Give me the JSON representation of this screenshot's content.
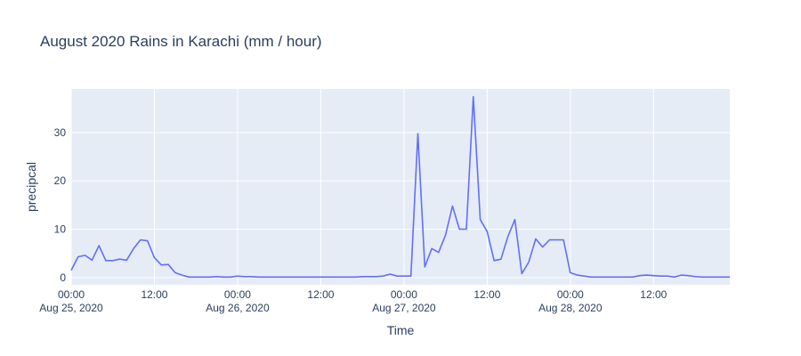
{
  "chart_data": {
    "type": "line",
    "title": "August 2020 Rains in Karachi (mm / hour)",
    "xlabel": "Time",
    "ylabel": "precipcal",
    "xlim": [
      "2020-08-25 00:00",
      "2020-08-28 23:00"
    ],
    "ylim": [
      -1.5,
      39
    ],
    "y_ticks": [
      0,
      10,
      20,
      30
    ],
    "x_ticks": [
      {
        "at": "2020-08-25 00:00",
        "label": "00:00",
        "sublabel": "Aug 25, 2020"
      },
      {
        "at": "2020-08-25 12:00",
        "label": "12:00",
        "sublabel": ""
      },
      {
        "at": "2020-08-26 00:00",
        "label": "00:00",
        "sublabel": "Aug 26, 2020"
      },
      {
        "at": "2020-08-26 12:00",
        "label": "12:00",
        "sublabel": ""
      },
      {
        "at": "2020-08-27 00:00",
        "label": "00:00",
        "sublabel": "Aug 27, 2020"
      },
      {
        "at": "2020-08-27 12:00",
        "label": "12:00",
        "sublabel": ""
      },
      {
        "at": "2020-08-28 00:00",
        "label": "00:00",
        "sublabel": "Aug 28, 2020"
      },
      {
        "at": "2020-08-28 12:00",
        "label": "12:00",
        "sublabel": ""
      }
    ],
    "grid": true,
    "line_color": "#636efa",
    "plot_background": "#e5ecf6",
    "series": [
      {
        "x": [
          "2020-08-25 00:00",
          "2020-08-25 01:00",
          "2020-08-25 02:00",
          "2020-08-25 03:00",
          "2020-08-25 04:00",
          "2020-08-25 05:00",
          "2020-08-25 06:00",
          "2020-08-25 07:00",
          "2020-08-25 08:00",
          "2020-08-25 09:00",
          "2020-08-25 10:00",
          "2020-08-25 11:00",
          "2020-08-25 12:00",
          "2020-08-25 13:00",
          "2020-08-25 14:00",
          "2020-08-25 15:00",
          "2020-08-25 16:00",
          "2020-08-25 17:00",
          "2020-08-25 18:00",
          "2020-08-25 19:00",
          "2020-08-25 20:00",
          "2020-08-25 21:00",
          "2020-08-25 22:00",
          "2020-08-25 23:00",
          "2020-08-26 00:00",
          "2020-08-26 01:00",
          "2020-08-26 02:00",
          "2020-08-26 03:00",
          "2020-08-26 04:00",
          "2020-08-26 05:00",
          "2020-08-26 06:00",
          "2020-08-26 07:00",
          "2020-08-26 08:00",
          "2020-08-26 09:00",
          "2020-08-26 10:00",
          "2020-08-26 11:00",
          "2020-08-26 12:00",
          "2020-08-26 13:00",
          "2020-08-26 14:00",
          "2020-08-26 15:00",
          "2020-08-26 16:00",
          "2020-08-26 17:00",
          "2020-08-26 18:00",
          "2020-08-26 19:00",
          "2020-08-26 20:00",
          "2020-08-26 21:00",
          "2020-08-26 22:00",
          "2020-08-26 23:00",
          "2020-08-27 00:00",
          "2020-08-27 01:00",
          "2020-08-27 02:00",
          "2020-08-27 03:00",
          "2020-08-27 04:00",
          "2020-08-27 05:00",
          "2020-08-27 06:00",
          "2020-08-27 07:00",
          "2020-08-27 08:00",
          "2020-08-27 09:00",
          "2020-08-27 10:00",
          "2020-08-27 11:00",
          "2020-08-27 12:00",
          "2020-08-27 13:00",
          "2020-08-27 14:00",
          "2020-08-27 15:00",
          "2020-08-27 16:00",
          "2020-08-27 17:00",
          "2020-08-27 18:00",
          "2020-08-27 19:00",
          "2020-08-27 20:00",
          "2020-08-27 21:00",
          "2020-08-27 22:00",
          "2020-08-27 23:00",
          "2020-08-28 00:00",
          "2020-08-28 01:00",
          "2020-08-28 02:00",
          "2020-08-28 03:00",
          "2020-08-28 04:00",
          "2020-08-28 05:00",
          "2020-08-28 06:00",
          "2020-08-28 07:00",
          "2020-08-28 08:00",
          "2020-08-28 09:00",
          "2020-08-28 10:00",
          "2020-08-28 11:00",
          "2020-08-28 12:00",
          "2020-08-28 13:00",
          "2020-08-28 14:00",
          "2020-08-28 15:00",
          "2020-08-28 16:00",
          "2020-08-28 17:00",
          "2020-08-28 18:00",
          "2020-08-28 19:00",
          "2020-08-28 20:00",
          "2020-08-28 21:00",
          "2020-08-28 22:00",
          "2020-08-28 23:00"
        ],
        "y": [
          1.5,
          4.3,
          4.6,
          3.6,
          6.6,
          3.5,
          3.5,
          3.8,
          3.6,
          6.0,
          7.8,
          7.6,
          4.1,
          2.6,
          2.7,
          1.0,
          0.5,
          0.1,
          0.1,
          0.1,
          0.1,
          0.2,
          0.1,
          0.1,
          0.3,
          0.2,
          0.2,
          0.1,
          0.1,
          0.1,
          0.1,
          0.1,
          0.1,
          0.1,
          0.1,
          0.1,
          0.1,
          0.1,
          0.1,
          0.1,
          0.1,
          0.1,
          0.2,
          0.2,
          0.2,
          0.3,
          0.7,
          0.3,
          0.3,
          0.3,
          29.8,
          2.2,
          6.0,
          5.2,
          8.8,
          14.8,
          10.0,
          10.0,
          37.4,
          12.0,
          9.5,
          3.5,
          3.8,
          8.5,
          12.0,
          0.8,
          3.2,
          8.0,
          6.3,
          7.8,
          7.8,
          7.8,
          1.0,
          0.5,
          0.3,
          0.1,
          0.1,
          0.1,
          0.1,
          0.1,
          0.1,
          0.1,
          0.4,
          0.5,
          0.4,
          0.3,
          0.3,
          0.1,
          0.5,
          0.4,
          0.2,
          0.1,
          0.1,
          0.1,
          0.1,
          0.1
        ]
      }
    ]
  }
}
